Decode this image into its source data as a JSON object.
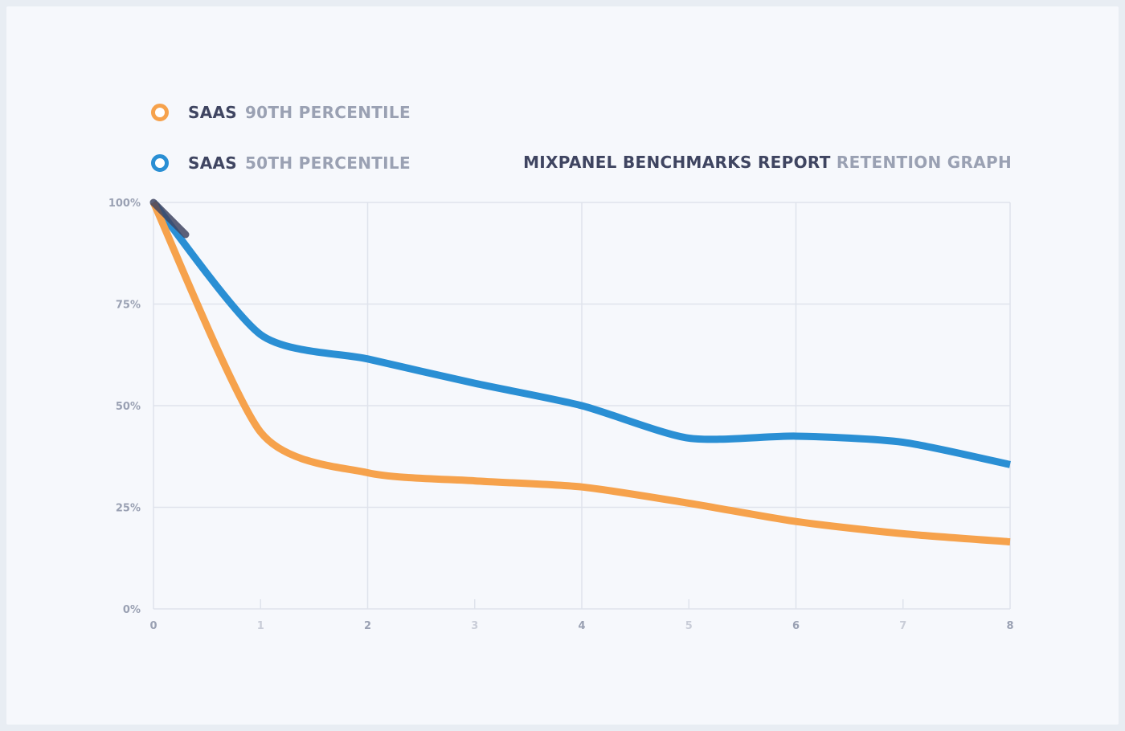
{
  "legend": [
    {
      "primary": "SAAS",
      "secondary": "90TH PERCENTILE",
      "color": "#f6a24c",
      "icon": "ring-marker-icon"
    },
    {
      "primary": "SAAS",
      "secondary": "50TH PERCENTILE",
      "color": "#2a8fd4",
      "icon": "ring-marker-icon"
    }
  ],
  "report_title": {
    "primary": "MIXPANEL BENCHMARKS REPORT",
    "secondary": "RETENTION GRAPH"
  },
  "colors": {
    "grid": "#dfe3ec",
    "axis_label": "#9aa1b3",
    "axis_label_faint": "#c9cdd8",
    "first_point": "#3f4561"
  },
  "chart_data": {
    "type": "line",
    "x": [
      0,
      1,
      2,
      3,
      4,
      5,
      6,
      7,
      8
    ],
    "xlim": [
      0,
      8
    ],
    "ylim": [
      0,
      100
    ],
    "x_ticks": [
      "0",
      "1",
      "2",
      "3",
      "4",
      "5",
      "6",
      "7",
      "8"
    ],
    "y_ticks": [
      "0%",
      "25%",
      "50%",
      "75%",
      "100%"
    ],
    "y_tick_values": [
      0,
      25,
      50,
      75,
      100
    ],
    "grid": true,
    "legend_position": "top-left",
    "series": [
      {
        "name": "SAAS 90TH PERCENTILE",
        "color": "#f6a24c",
        "values": [
          100,
          43.5,
          33.5,
          31.5,
          30,
          26,
          21.5,
          18.5,
          16.5
        ]
      },
      {
        "name": "SAAS 50TH PERCENTILE",
        "color": "#2a8fd4",
        "values": [
          100,
          67.5,
          61.5,
          55.5,
          50,
          42,
          42.5,
          41,
          35.5
        ]
      }
    ]
  }
}
